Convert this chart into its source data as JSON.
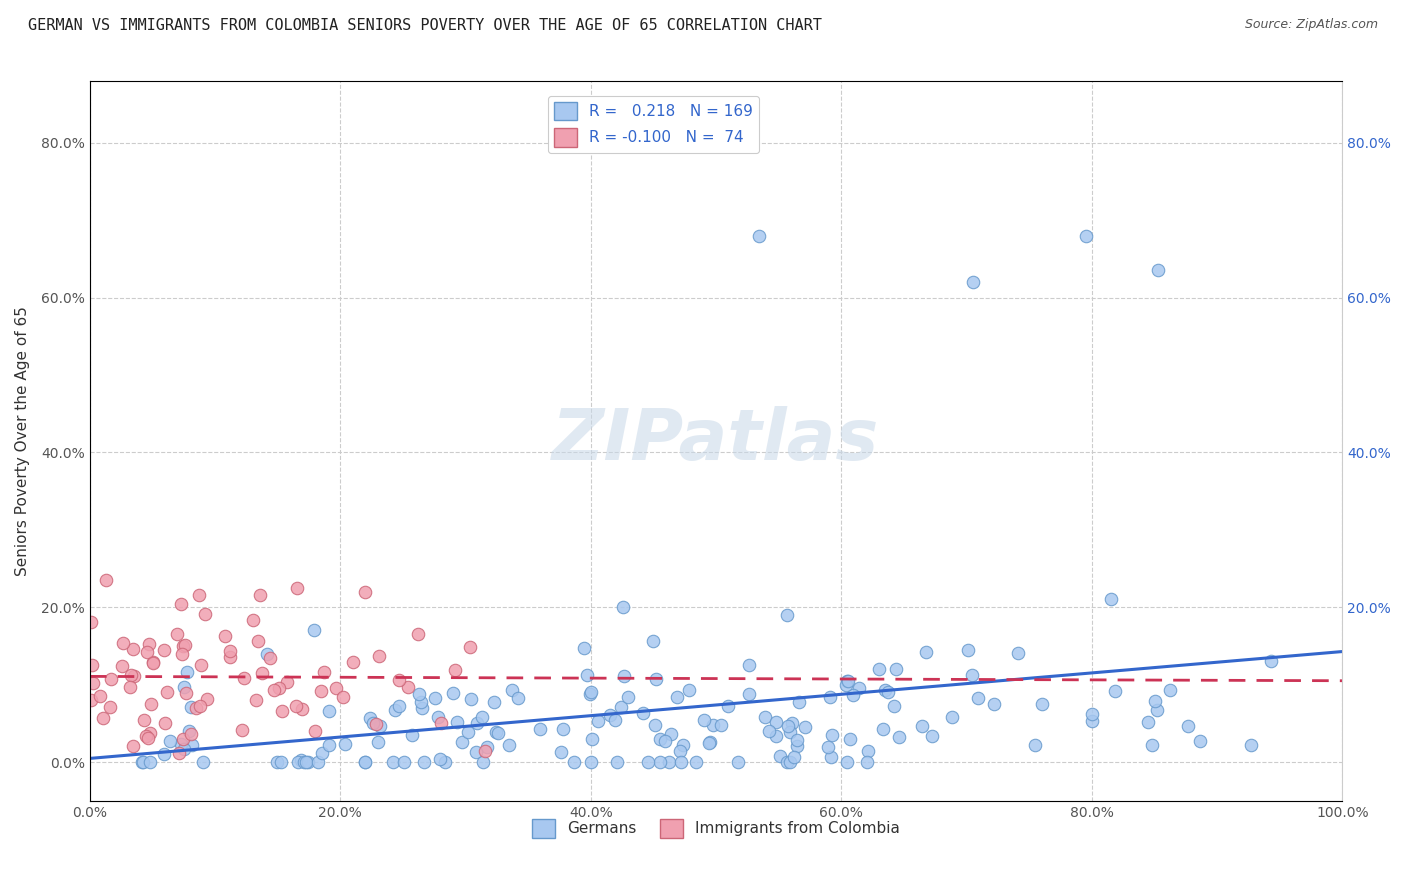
{
  "title": "GERMAN VS IMMIGRANTS FROM COLOMBIA SENIORS POVERTY OVER THE AGE OF 65 CORRELATION CHART",
  "source_text": "Source: ZipAtlas.com",
  "ylabel": "Seniors Poverty Over the Age of 65",
  "xlabel": "",
  "xlim": [
    0,
    1.0
  ],
  "ylim": [
    -0.05,
    0.88
  ],
  "xticks": [
    0.0,
    0.2,
    0.4,
    0.6,
    0.8,
    1.0
  ],
  "xtick_labels": [
    "0.0%",
    "20.0%",
    "40.0%",
    "60.0%",
    "80.0%",
    "100.0%"
  ],
  "ytick_positions": [
    0.0,
    0.2,
    0.4,
    0.6,
    0.8
  ],
  "ytick_labels": [
    "0.0%",
    "20.0%",
    "40.0%",
    "60.0%",
    "80.0%"
  ],
  "right_ytick_positions": [
    0.0,
    0.2,
    0.4,
    0.6,
    0.8
  ],
  "right_ytick_labels": [
    "",
    "20.0%",
    "40.0%",
    "60.0%",
    "80.0%"
  ],
  "german_color": "#a8c8f0",
  "german_edge_color": "#6699cc",
  "colombia_color": "#f0a0b0",
  "colombia_edge_color": "#cc6677",
  "trend_german_color": "#3366cc",
  "trend_colombia_color": "#cc3355",
  "legend_german_label": "R =   0.218   N = 169",
  "legend_colombia_label": "R = -0.100   N =  74",
  "legend_bottom_german": "Germans",
  "legend_bottom_colombia": "Immigrants from Colombia",
  "watermark": "ZIPatlas",
  "R_german": 0.218,
  "N_german": 169,
  "R_colombia": -0.1,
  "N_colombia": 74,
  "title_fontsize": 11,
  "axis_label_fontsize": 11,
  "tick_fontsize": 10,
  "legend_fontsize": 11,
  "marker_size": 9,
  "background_color": "#ffffff",
  "grid_color": "#cccccc",
  "seed": 42
}
